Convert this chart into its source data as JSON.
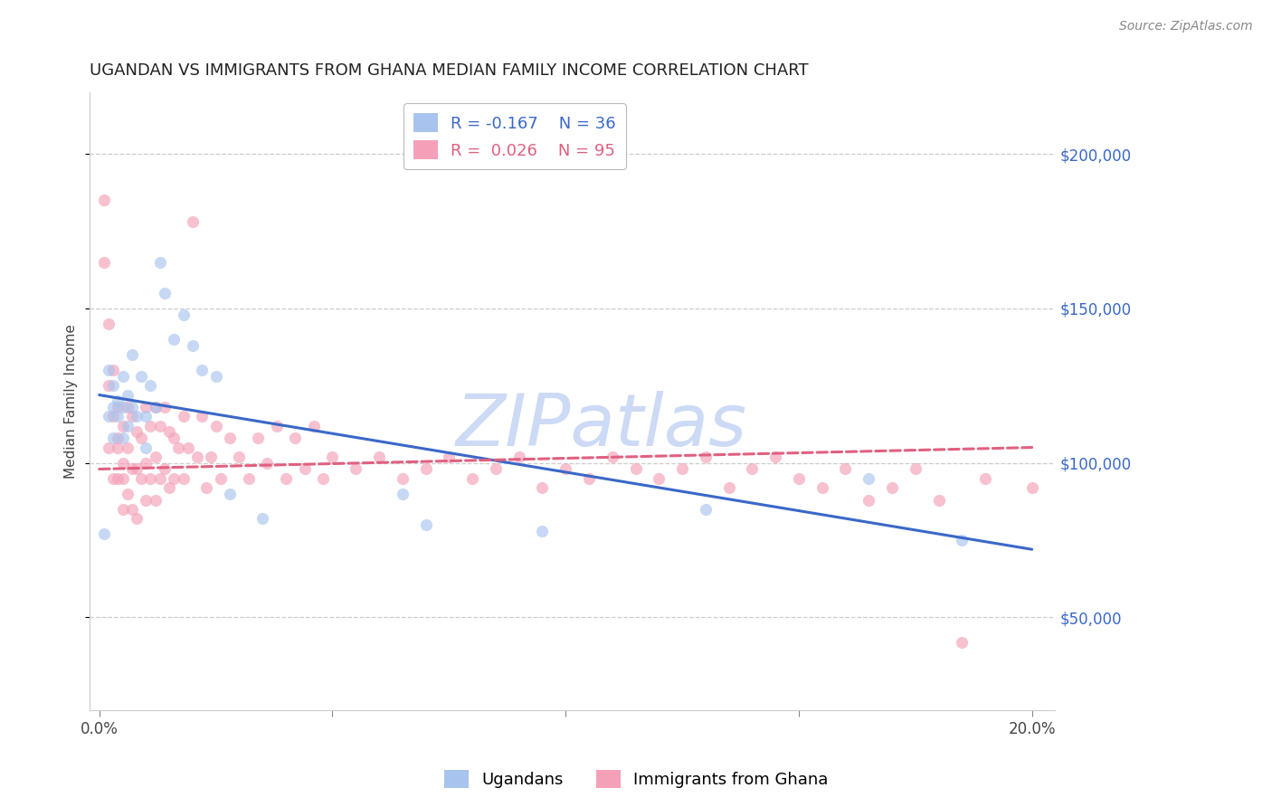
{
  "title": "UGANDAN VS IMMIGRANTS FROM GHANA MEDIAN FAMILY INCOME CORRELATION CHART",
  "source": "Source: ZipAtlas.com",
  "ylabel": "Median Family Income",
  "xlim": [
    -0.002,
    0.205
  ],
  "ylim": [
    20000,
    220000
  ],
  "yticks": [
    50000,
    100000,
    150000,
    200000
  ],
  "ytick_labels": [
    "$50,000",
    "$100,000",
    "$150,000",
    "$200,000"
  ],
  "xticks": [
    0.0,
    0.05,
    0.1,
    0.15,
    0.2
  ],
  "xtick_labels": [
    "0.0%",
    "",
    "",
    "",
    "20.0%"
  ],
  "background_color": "#ffffff",
  "grid_color": "#c8c8c8",
  "ugandan_color": "#a8c4ee",
  "ghana_color": "#f4a0b8",
  "ugandan_line_color": "#3a68c8",
  "ghana_line_color": "#e06080",
  "watermark_text": "ZIPatlas",
  "watermark_color": "#ccdaf5",
  "legend_R_ugandan": "R = -0.167",
  "legend_N_ugandan": "N = 36",
  "legend_R_ghana": "R =  0.026",
  "legend_N_ghana": "N = 95",
  "ugandan_label": "Ugandans",
  "ghana_label": "Immigrants from Ghana",
  "ugandan_scatter_x": [
    0.001,
    0.002,
    0.002,
    0.003,
    0.003,
    0.003,
    0.004,
    0.004,
    0.005,
    0.005,
    0.005,
    0.006,
    0.006,
    0.007,
    0.007,
    0.008,
    0.009,
    0.01,
    0.01,
    0.011,
    0.012,
    0.013,
    0.014,
    0.016,
    0.018,
    0.02,
    0.022,
    0.025,
    0.028,
    0.035,
    0.065,
    0.07,
    0.095,
    0.13,
    0.165,
    0.185
  ],
  "ugandan_scatter_y": [
    77000,
    115000,
    130000,
    108000,
    118000,
    125000,
    120000,
    115000,
    128000,
    118000,
    108000,
    122000,
    112000,
    135000,
    118000,
    115000,
    128000,
    115000,
    105000,
    125000,
    118000,
    165000,
    155000,
    140000,
    148000,
    138000,
    130000,
    128000,
    90000,
    82000,
    90000,
    80000,
    78000,
    85000,
    95000,
    75000
  ],
  "ghana_scatter_x": [
    0.001,
    0.001,
    0.002,
    0.002,
    0.002,
    0.003,
    0.003,
    0.003,
    0.004,
    0.004,
    0.004,
    0.004,
    0.005,
    0.005,
    0.005,
    0.005,
    0.006,
    0.006,
    0.006,
    0.007,
    0.007,
    0.007,
    0.008,
    0.008,
    0.008,
    0.009,
    0.009,
    0.01,
    0.01,
    0.01,
    0.011,
    0.011,
    0.012,
    0.012,
    0.012,
    0.013,
    0.013,
    0.014,
    0.014,
    0.015,
    0.015,
    0.016,
    0.016,
    0.017,
    0.018,
    0.018,
    0.019,
    0.02,
    0.021,
    0.022,
    0.023,
    0.024,
    0.025,
    0.026,
    0.028,
    0.03,
    0.032,
    0.034,
    0.036,
    0.038,
    0.04,
    0.042,
    0.044,
    0.046,
    0.048,
    0.05,
    0.055,
    0.06,
    0.065,
    0.07,
    0.075,
    0.08,
    0.085,
    0.09,
    0.095,
    0.1,
    0.105,
    0.11,
    0.115,
    0.12,
    0.125,
    0.13,
    0.135,
    0.14,
    0.145,
    0.15,
    0.155,
    0.16,
    0.165,
    0.17,
    0.175,
    0.18,
    0.185,
    0.19,
    0.2
  ],
  "ghana_scatter_y": [
    185000,
    165000,
    105000,
    125000,
    145000,
    95000,
    115000,
    130000,
    108000,
    118000,
    95000,
    105000,
    100000,
    112000,
    85000,
    95000,
    118000,
    105000,
    90000,
    115000,
    98000,
    85000,
    110000,
    98000,
    82000,
    108000,
    95000,
    118000,
    100000,
    88000,
    112000,
    95000,
    118000,
    102000,
    88000,
    112000,
    95000,
    118000,
    98000,
    110000,
    92000,
    108000,
    95000,
    105000,
    115000,
    95000,
    105000,
    178000,
    102000,
    115000,
    92000,
    102000,
    112000,
    95000,
    108000,
    102000,
    95000,
    108000,
    100000,
    112000,
    95000,
    108000,
    98000,
    112000,
    95000,
    102000,
    98000,
    102000,
    95000,
    98000,
    102000,
    95000,
    98000,
    102000,
    92000,
    98000,
    95000,
    102000,
    98000,
    95000,
    98000,
    102000,
    92000,
    98000,
    102000,
    95000,
    92000,
    98000,
    88000,
    92000,
    98000,
    88000,
    42000,
    95000,
    92000
  ],
  "ugandan_trendline_x": [
    0.0,
    0.2
  ],
  "ugandan_trendline_y": [
    122000,
    72000
  ],
  "ghana_trendline_x": [
    0.0,
    0.2
  ],
  "ghana_trendline_y": [
    98000,
    105000
  ],
  "title_fontsize": 13,
  "axis_label_fontsize": 11,
  "tick_fontsize": 12,
  "legend_fontsize": 13,
  "source_fontsize": 10,
  "marker_size": 90,
  "marker_alpha": 0.65,
  "line_width": 2.2
}
